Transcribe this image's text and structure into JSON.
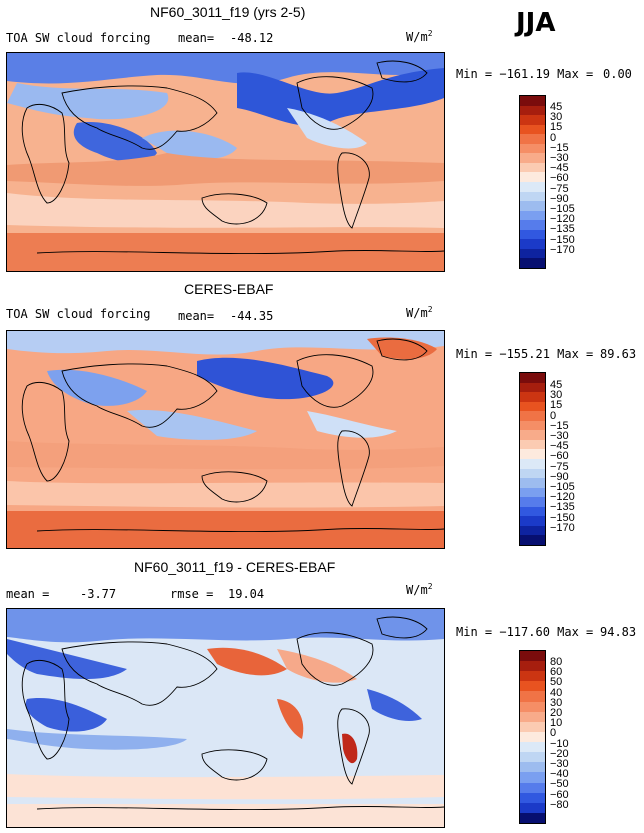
{
  "season": "JJA",
  "panels": [
    {
      "title": "NF60_3011_f19 (yrs 2-5)",
      "left_label": "TOA SW cloud forcing",
      "stat_label": "mean=",
      "stat_value": "-48.12",
      "stat2_label": "",
      "stat2_value": "",
      "unit_base": "W/m",
      "unit_exp": "2",
      "range_text": "Min = −161.19 Max =",
      "max_text": "0.00",
      "colorbar_labels": [
        "45",
        "30",
        "15",
        "0",
        "−15",
        "−30",
        "−45",
        "−60",
        "−75",
        "−90",
        "−105",
        "−120",
        "−135",
        "−150",
        "−170"
      ],
      "colorbar_colors": [
        "#7a0c0c",
        "#a61e0e",
        "#cc3512",
        "#e85320",
        "#f07346",
        "#f58e66",
        "#f8ab8a",
        "#fbcbb2",
        "#fdeade",
        "#dce9f7",
        "#bfd6f3",
        "#9dbcef",
        "#7a9ff0",
        "#567ceb",
        "#3158e0",
        "#1b3ac8",
        "#0e23a0",
        "#070f70"
      ]
    },
    {
      "title": "CERES-EBAF",
      "left_label": "TOA SW cloud forcing",
      "stat_label": "mean=",
      "stat_value": "-44.35",
      "stat2_label": "",
      "stat2_value": "",
      "unit_base": "W/m",
      "unit_exp": "2",
      "range_text": "Min = −155.21 Max =",
      "max_text": "89.63",
      "colorbar_labels": [
        "45",
        "30",
        "15",
        "0",
        "−15",
        "−30",
        "−45",
        "−60",
        "−75",
        "−90",
        "−105",
        "−120",
        "−135",
        "−150",
        "−170"
      ],
      "colorbar_colors": [
        "#7a0c0c",
        "#a61e0e",
        "#cc3512",
        "#e85320",
        "#f07346",
        "#f58e66",
        "#f8ab8a",
        "#fbcbb2",
        "#fdeade",
        "#dce9f7",
        "#bfd6f3",
        "#9dbcef",
        "#7a9ff0",
        "#567ceb",
        "#3158e0",
        "#1b3ac8",
        "#0e23a0",
        "#070f70"
      ]
    },
    {
      "title": "NF60_3011_f19 - CERES-EBAF",
      "left_label": "",
      "stat_label": "mean =",
      "stat_value": "-3.77",
      "stat2_label": "rmse =",
      "stat2_value": "19.04",
      "unit_base": "W/m",
      "unit_exp": "2",
      "range_text": "Min = −117.60 Max =",
      "max_text": "94.83",
      "colorbar_labels": [
        "80",
        "60",
        "50",
        "40",
        "30",
        "20",
        "10",
        "0",
        "−10",
        "−20",
        "−30",
        "−40",
        "−50",
        "−60",
        "−80"
      ],
      "colorbar_colors": [
        "#7a0c0c",
        "#a61e0e",
        "#cc3512",
        "#e85320",
        "#f07346",
        "#f58e66",
        "#f8ab8a",
        "#fbcbb2",
        "#fdeade",
        "#dce9f7",
        "#bfd6f3",
        "#9dbcef",
        "#7a9ff0",
        "#567ceb",
        "#3158e0",
        "#1b3ac8",
        "#070f70"
      ]
    }
  ]
}
